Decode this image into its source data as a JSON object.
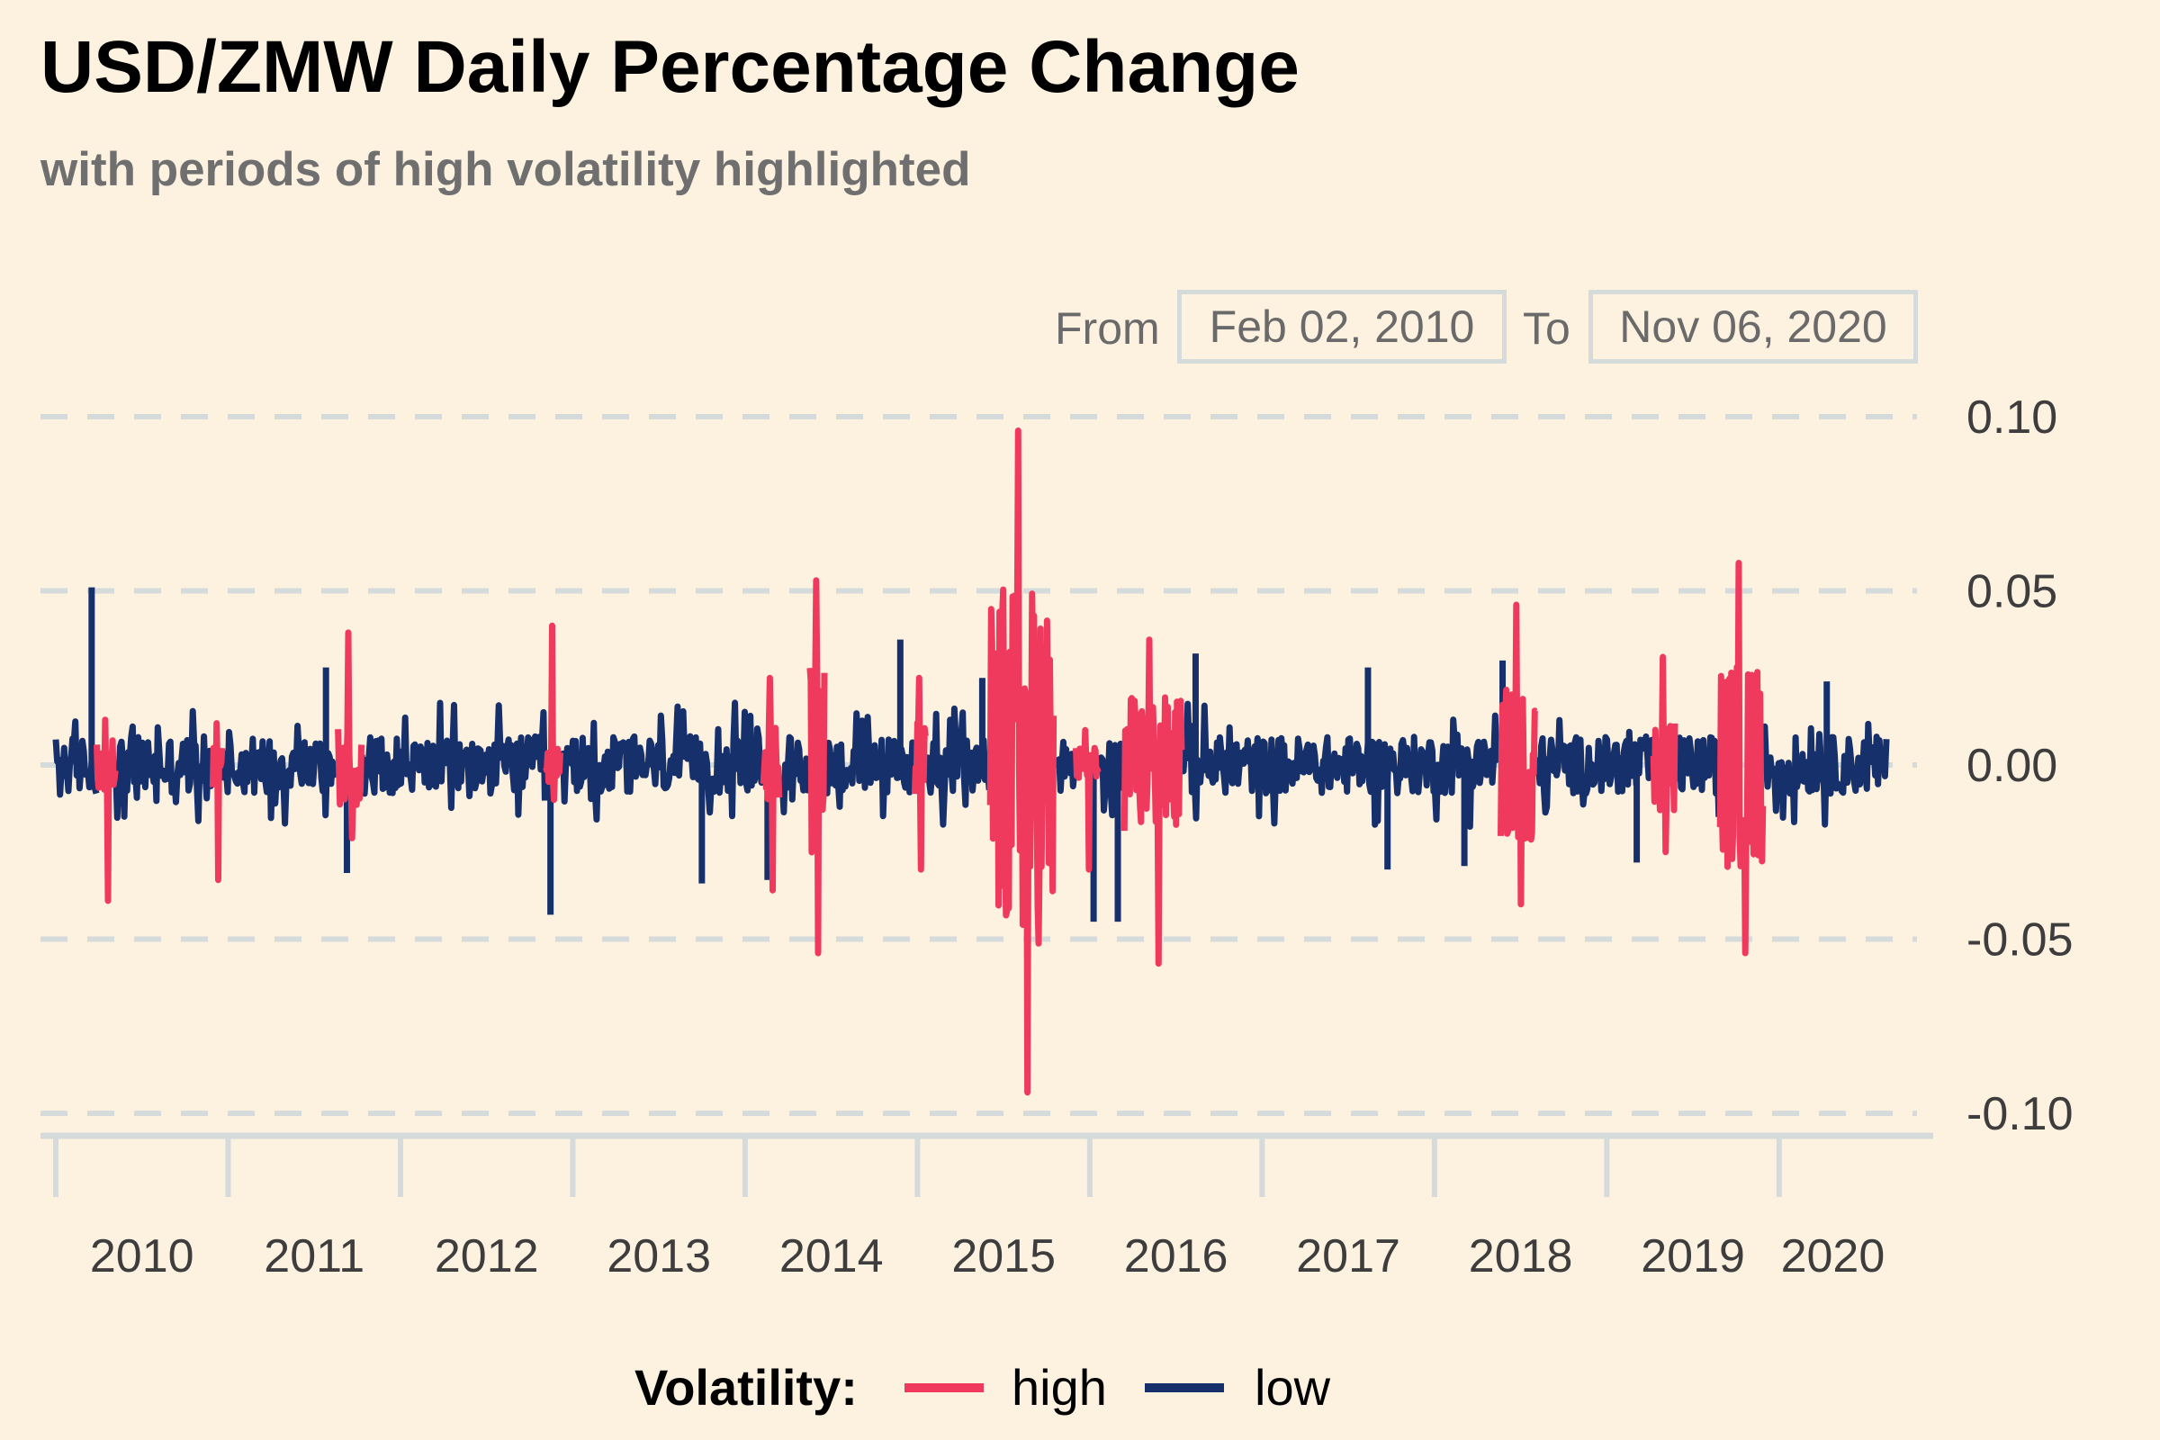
{
  "title": "USD/ZMW Daily Percentage Change",
  "subtitle": "with periods of high volatility highlighted",
  "range_selector": {
    "from_label": "From",
    "from_value": "Feb 02, 2010",
    "to_label": "To",
    "to_value": "Nov 06, 2020"
  },
  "legend": {
    "title": "Volatility:",
    "items": [
      {
        "label": "high",
        "color": "#ef3a5d"
      },
      {
        "label": "low",
        "color": "#16306b"
      }
    ]
  },
  "colors": {
    "background": "#fdf1e0",
    "grid": "#d5dadb",
    "high": "#ef3a5d",
    "low": "#16306b"
  },
  "chart_data": {
    "type": "line",
    "title": "USD/ZMW Daily Percentage Change",
    "subtitle": "with periods of high volatility highlighted",
    "xlabel": "",
    "ylabel": "",
    "x_range": [
      "2010-02-02",
      "2020-11-06"
    ],
    "ylim": [
      -0.1,
      0.1
    ],
    "y_ticks": [
      0.1,
      0.05,
      0.0,
      -0.05,
      -0.1
    ],
    "y_tick_labels": [
      "0.10",
      "0.05",
      "0.00",
      "-0.05",
      "-0.10"
    ],
    "x_tick_labels": [
      "2010",
      "2011",
      "2012",
      "2013",
      "2014",
      "2015",
      "2016",
      "2017",
      "2018",
      "2019",
      "2020"
    ],
    "grid": "horizontal dashed",
    "legend_position": "bottom",
    "series": [
      {
        "name": "high",
        "color": "#ef3a5d",
        "periods": [
          {
            "start": "2010-05-01",
            "end": "2010-06-10",
            "min": -0.039,
            "max": 0.013
          },
          {
            "start": "2011-01-05",
            "end": "2011-01-25",
            "min": -0.033,
            "max": 0.012
          },
          {
            "start": "2011-10-01",
            "end": "2011-11-20",
            "min": -0.021,
            "max": 0.038
          },
          {
            "start": "2012-12-20",
            "end": "2013-01-20",
            "min": -0.01,
            "max": 0.04
          },
          {
            "start": "2014-04-01",
            "end": "2014-05-05",
            "min": -0.036,
            "max": 0.025
          },
          {
            "start": "2014-07-10",
            "end": "2014-08-10",
            "min": -0.054,
            "max": 0.053
          },
          {
            "start": "2015-02-20",
            "end": "2015-03-15",
            "min": -0.03,
            "max": 0.025
          },
          {
            "start": "2015-08-01",
            "end": "2015-12-15",
            "min": -0.094,
            "max": 0.096
          },
          {
            "start": "2016-02-01",
            "end": "2016-03-20",
            "min": -0.03,
            "max": 0.01
          },
          {
            "start": "2016-05-15",
            "end": "2016-09-15",
            "min": -0.057,
            "max": 0.036
          },
          {
            "start": "2018-08-01",
            "end": "2018-10-15",
            "min": -0.04,
            "max": 0.046
          },
          {
            "start": "2019-06-25",
            "end": "2019-08-10",
            "min": -0.025,
            "max": 0.031
          },
          {
            "start": "2019-11-15",
            "end": "2020-02-15",
            "min": -0.054,
            "max": 0.058
          }
        ]
      },
      {
        "name": "low",
        "color": "#16306b",
        "typical_range": [
          -0.015,
          0.015
        ],
        "spikes": [
          {
            "date": "2010-04-20",
            "value": 0.051
          },
          {
            "date": "2011-09-05",
            "value": 0.028
          },
          {
            "date": "2011-10-20",
            "value": -0.031
          },
          {
            "date": "2012-12-30",
            "value": -0.043
          },
          {
            "date": "2013-11-20",
            "value": -0.034
          },
          {
            "date": "2014-04-10",
            "value": -0.033
          },
          {
            "date": "2015-01-20",
            "value": 0.036
          },
          {
            "date": "2015-07-15",
            "value": 0.025
          },
          {
            "date": "2016-03-10",
            "value": -0.045
          },
          {
            "date": "2016-05-01",
            "value": -0.045
          },
          {
            "date": "2016-10-15",
            "value": 0.032
          },
          {
            "date": "2017-10-20",
            "value": 0.028
          },
          {
            "date": "2017-12-01",
            "value": -0.03
          },
          {
            "date": "2018-05-15",
            "value": -0.029
          },
          {
            "date": "2018-08-05",
            "value": 0.03
          },
          {
            "date": "2019-05-20",
            "value": -0.028
          },
          {
            "date": "2020-07-01",
            "value": 0.024
          }
        ]
      }
    ]
  }
}
